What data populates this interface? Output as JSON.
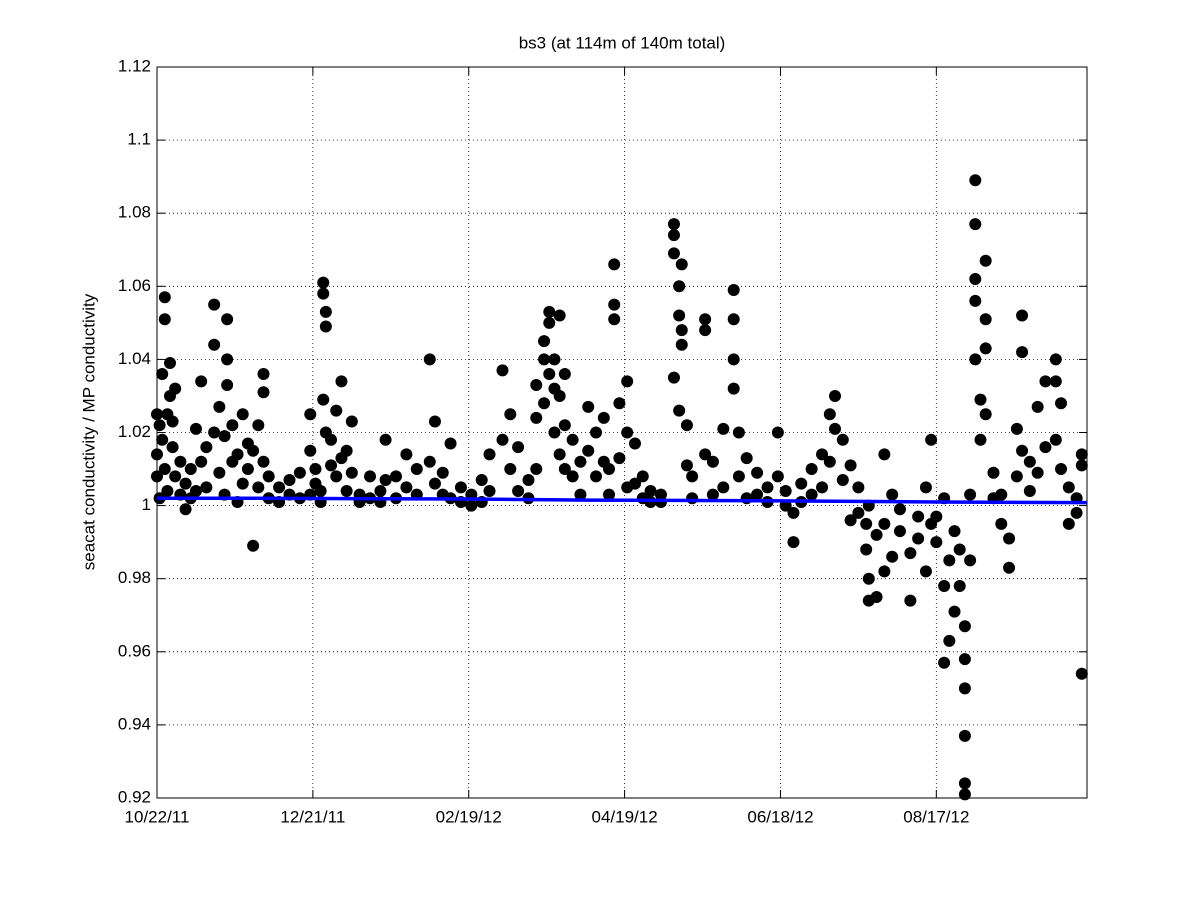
{
  "chart_data": {
    "type": "scatter",
    "title": "bs3 (at 114m of 140m total)",
    "ylabel": "seacat conductivity / MP conductivity",
    "xlim": [
      "10/22/11",
      "10/14/12"
    ],
    "xticks": [
      "10/22/11",
      "12/21/11",
      "02/19/12",
      "04/19/12",
      "06/18/12",
      "08/17/12"
    ],
    "ylim": [
      0.92,
      1.12
    ],
    "yticks": [
      0.92,
      0.94,
      0.96,
      0.98,
      1,
      1.02,
      1.04,
      1.06,
      1.08,
      1.1,
      1.12
    ],
    "grid": true,
    "series": [
      {
        "type": "scatter",
        "color": "#000000",
        "x": [
          "10/22/11",
          "10/22/11",
          "10/22/11",
          "10/23/11",
          "10/23/11",
          "10/24/11",
          "10/24/11",
          "10/25/11",
          "10/25/11",
          "10/25/11",
          "10/26/11",
          "10/26/11",
          "10/27/11",
          "10/27/11",
          "10/28/11",
          "10/28/11",
          "10/29/11",
          "10/29/11",
          "10/31/11",
          "10/31/11",
          "11/02/11",
          "11/02/11",
          "11/04/11",
          "11/04/11",
          "11/06/11",
          "11/06/11",
          "11/08/11",
          "11/08/11",
          "11/10/11",
          "11/10/11",
          "11/13/11",
          "11/13/11",
          "11/13/11",
          "11/15/11",
          "11/15/11",
          "11/17/11",
          "11/17/11",
          "11/18/11",
          "11/18/11",
          "11/18/11",
          "11/20/11",
          "11/20/11",
          "11/22/11",
          "11/22/11",
          "11/24/11",
          "11/24/11",
          "11/26/11",
          "11/26/11",
          "11/28/11",
          "11/28/11",
          "11/30/11",
          "11/30/11",
          "12/02/11",
          "12/02/11",
          "12/02/11",
          "12/04/11",
          "12/04/11",
          "12/08/11",
          "12/08/11",
          "12/12/11",
          "12/12/11",
          "12/16/11",
          "12/16/11",
          "12/20/11",
          "12/20/11",
          "12/20/11",
          "12/22/11",
          "12/22/11",
          "12/24/11",
          "12/24/11",
          "12/25/11",
          "12/25/11",
          "12/25/11",
          "12/26/11",
          "12/26/11",
          "12/26/11",
          "12/28/11",
          "12/28/11",
          "12/30/11",
          "12/30/11",
          "01/01/12",
          "01/01/12",
          "01/03/12",
          "01/03/12",
          "01/05/12",
          "01/05/12",
          "01/08/12",
          "01/08/12",
          "01/12/12",
          "01/12/12",
          "01/16/12",
          "01/16/12",
          "01/18/12",
          "01/18/12",
          "01/22/12",
          "01/22/12",
          "01/26/12",
          "01/26/12",
          "01/30/12",
          "01/30/12",
          "02/04/12",
          "02/04/12",
          "02/06/12",
          "02/06/12",
          "02/09/12",
          "02/09/12",
          "02/12/12",
          "02/12/12",
          "02/16/12",
          "02/16/12",
          "02/20/12",
          "02/20/12",
          "02/24/12",
          "02/24/12",
          "02/27/12",
          "02/27/12",
          "03/03/12",
          "03/03/12",
          "03/06/12",
          "03/06/12",
          "03/09/12",
          "03/09/12",
          "03/13/12",
          "03/13/12",
          "03/16/12",
          "03/16/12",
          "03/16/12",
          "03/19/12",
          "03/19/12",
          "03/19/12",
          "03/21/12",
          "03/21/12",
          "03/21/12",
          "03/23/12",
          "03/23/12",
          "03/23/12",
          "03/25/12",
          "03/25/12",
          "03/25/12",
          "03/27/12",
          "03/27/12",
          "03/27/12",
          "03/30/12",
          "03/30/12",
          "04/02/12",
          "04/02/12",
          "04/05/12",
          "04/05/12",
          "04/08/12",
          "04/08/12",
          "04/11/12",
          "04/11/12",
          "04/13/12",
          "04/13/12",
          "04/15/12",
          "04/15/12",
          "04/15/12",
          "04/17/12",
          "04/17/12",
          "04/20/12",
          "04/20/12",
          "04/20/12",
          "04/23/12",
          "04/23/12",
          "04/26/12",
          "04/26/12",
          "04/29/12",
          "04/29/12",
          "05/03/12",
          "05/03/12",
          "05/08/12",
          "05/08/12",
          "05/08/12",
          "05/08/12",
          "05/10/12",
          "05/10/12",
          "05/10/12",
          "05/11/12",
          "05/11/12",
          "05/11/12",
          "05/13/12",
          "05/13/12",
          "05/15/12",
          "05/15/12",
          "05/20/12",
          "05/20/12",
          "05/20/12",
          "05/23/12",
          "05/23/12",
          "05/27/12",
          "05/27/12",
          "05/31/12",
          "05/31/12",
          "05/31/12",
          "05/31/12",
          "06/02/12",
          "06/02/12",
          "06/05/12",
          "06/05/12",
          "06/09/12",
          "06/09/12",
          "06/13/12",
          "06/13/12",
          "06/17/12",
          "06/17/12",
          "06/20/12",
          "06/20/12",
          "06/23/12",
          "06/23/12",
          "06/26/12",
          "06/26/12",
          "06/30/12",
          "06/30/12",
          "07/04/12",
          "07/04/12",
          "07/07/12",
          "07/07/12",
          "07/09/12",
          "07/09/12",
          "07/12/12",
          "07/12/12",
          "07/15/12",
          "07/15/12",
          "07/18/12",
          "07/18/12",
          "07/21/12",
          "07/21/12",
          "07/22/12",
          "07/22/12",
          "07/22/12",
          "07/25/12",
          "07/25/12",
          "07/28/12",
          "07/28/12",
          "07/28/12",
          "07/31/12",
          "07/31/12",
          "08/03/12",
          "08/03/12",
          "08/07/12",
          "08/07/12",
          "08/10/12",
          "08/10/12",
          "08/13/12",
          "08/13/12",
          "08/15/12",
          "08/15/12",
          "08/17/12",
          "08/17/12",
          "08/20/12",
          "08/20/12",
          "08/20/12",
          "08/22/12",
          "08/22/12",
          "08/24/12",
          "08/24/12",
          "08/26/12",
          "08/26/12",
          "08/28/12",
          "08/28/12",
          "08/28/12",
          "08/28/12",
          "08/28/12",
          "08/28/12",
          "08/30/12",
          "08/30/12",
          "09/01/12",
          "09/01/12",
          "09/01/12",
          "09/01/12",
          "09/01/12",
          "09/03/12",
          "09/03/12",
          "09/05/12",
          "09/05/12",
          "09/05/12",
          "09/05/12",
          "09/08/12",
          "09/08/12",
          "09/11/12",
          "09/11/12",
          "09/14/12",
          "09/14/12",
          "09/17/12",
          "09/17/12",
          "09/19/12",
          "09/19/12",
          "09/19/12",
          "09/22/12",
          "09/22/12",
          "09/25/12",
          "09/25/12",
          "09/28/12",
          "09/28/12",
          "10/02/12",
          "10/02/12",
          "10/02/12",
          "10/04/12",
          "10/04/12",
          "10/07/12",
          "10/07/12",
          "10/10/12",
          "10/10/12",
          "10/12/12",
          "10/12/12",
          "10/12/12"
        ],
        "values": [
          1.008,
          1.025,
          1.014,
          1.002,
          1.022,
          1.036,
          1.018,
          1.057,
          1.051,
          1.01,
          1.025,
          1.004,
          1.039,
          1.03,
          1.016,
          1.023,
          1.032,
          1.008,
          1.003,
          1.012,
          0.999,
          1.006,
          1.002,
          1.01,
          1.021,
          1.004,
          1.034,
          1.012,
          1.005,
          1.016,
          1.055,
          1.044,
          1.02,
          1.027,
          1.009,
          1.019,
          1.003,
          1.051,
          1.04,
          1.033,
          1.022,
          1.012,
          1.014,
          1.001,
          1.025,
          1.006,
          1.017,
          1.01,
          0.989,
          1.015,
          1.022,
          1.005,
          1.036,
          1.031,
          1.012,
          1.008,
          1.002,
          1.005,
          1.001,
          1.003,
          1.007,
          1.002,
          1.009,
          1.025,
          1.015,
          1.003,
          1.006,
          1.01,
          1.004,
          1.001,
          1.061,
          1.058,
          1.029,
          1.053,
          1.049,
          1.02,
          1.018,
          1.011,
          1.026,
          1.008,
          1.034,
          1.013,
          1.015,
          1.004,
          1.023,
          1.009,
          1.003,
          1.001,
          1.008,
          1.002,
          1.004,
          1.001,
          1.018,
          1.007,
          1.008,
          1.002,
          1.014,
          1.005,
          1.01,
          1.003,
          1.04,
          1.012,
          1.023,
          1.006,
          1.009,
          1.003,
          1.017,
          1.002,
          1.005,
          1.001,
          1.003,
          1.0,
          1.007,
          1.001,
          1.014,
          1.004,
          1.037,
          1.018,
          1.025,
          1.01,
          1.016,
          1.004,
          1.007,
          1.002,
          1.033,
          1.024,
          1.01,
          1.045,
          1.04,
          1.028,
          1.053,
          1.05,
          1.036,
          1.04,
          1.032,
          1.02,
          1.052,
          1.03,
          1.014,
          1.036,
          1.022,
          1.01,
          1.018,
          1.008,
          1.012,
          1.003,
          1.027,
          1.015,
          1.02,
          1.008,
          1.024,
          1.012,
          1.01,
          1.003,
          1.066,
          1.055,
          1.051,
          1.028,
          1.013,
          1.034,
          1.02,
          1.005,
          1.017,
          1.006,
          1.008,
          1.002,
          1.004,
          1.001,
          1.003,
          1.001,
          1.077,
          1.074,
          1.069,
          1.035,
          1.06,
          1.052,
          1.026,
          1.066,
          1.048,
          1.044,
          1.022,
          1.011,
          1.008,
          1.002,
          1.051,
          1.048,
          1.014,
          1.012,
          1.003,
          1.021,
          1.005,
          1.059,
          1.051,
          1.04,
          1.032,
          1.02,
          1.008,
          1.013,
          1.002,
          1.009,
          1.003,
          1.005,
          1.001,
          1.02,
          1.008,
          1.004,
          1.0,
          0.99,
          0.998,
          1.006,
          1.001,
          1.01,
          1.003,
          1.014,
          1.005,
          1.025,
          1.012,
          1.03,
          1.021,
          1.018,
          1.007,
          1.011,
          0.996,
          1.005,
          0.998,
          0.995,
          0.988,
          0.974,
          0.98,
          1.0,
          0.975,
          0.992,
          0.982,
          0.995,
          1.014,
          0.986,
          1.003,
          0.993,
          0.999,
          0.974,
          0.987,
          0.991,
          0.997,
          0.982,
          1.005,
          1.018,
          0.995,
          0.99,
          0.997,
          0.957,
          0.978,
          1.002,
          0.963,
          0.985,
          0.971,
          0.993,
          0.978,
          0.988,
          0.958,
          0.95,
          0.937,
          0.924,
          0.921,
          0.967,
          0.985,
          1.003,
          1.089,
          1.077,
          1.062,
          1.056,
          1.04,
          1.029,
          1.018,
          1.067,
          1.051,
          1.043,
          1.025,
          1.009,
          1.002,
          0.995,
          1.003,
          0.983,
          0.991,
          1.021,
          1.008,
          1.052,
          1.042,
          1.015,
          1.012,
          1.004,
          1.027,
          1.009,
          1.034,
          1.016,
          1.04,
          1.034,
          1.018,
          1.028,
          1.01,
          1.005,
          0.995,
          1.002,
          0.998,
          1.014,
          1.011,
          0.954
        ]
      },
      {
        "type": "line",
        "color": "#0000ff",
        "x": [
          "10/22/11",
          "11/28/11",
          "02/19/12",
          "04/05/12",
          "06/18/12",
          "08/17/12",
          "10/14/12"
        ],
        "values": [
          1.002,
          1.002,
          1.0018,
          1.0015,
          1.0013,
          1.001,
          1.0008
        ]
      }
    ]
  }
}
